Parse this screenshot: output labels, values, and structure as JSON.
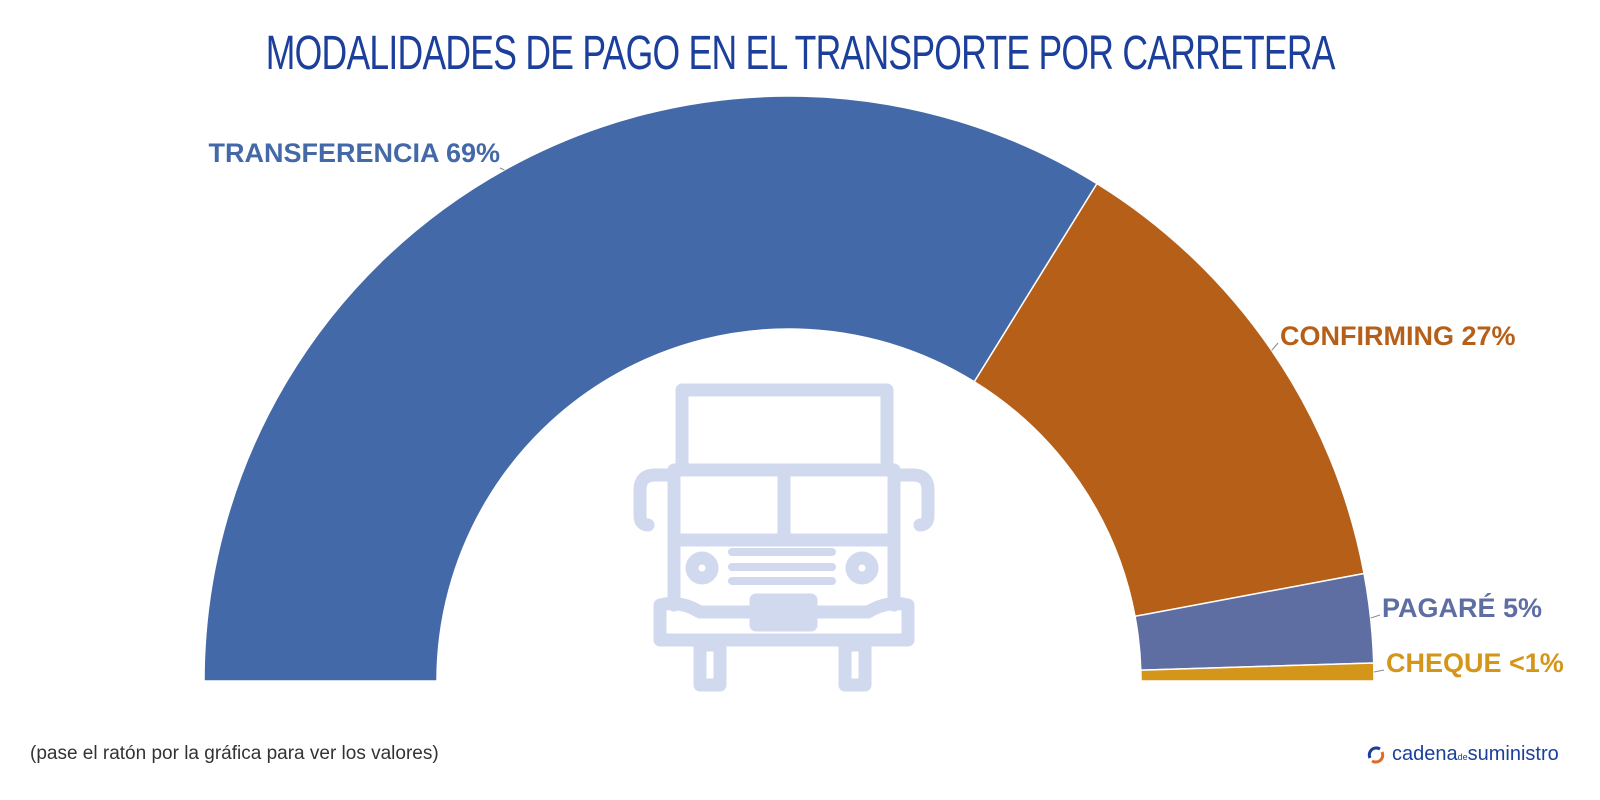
{
  "chart_data": {
    "type": "pie",
    "variant": "semi-donut",
    "title": "MODALIDADES DE PAGO EN EL TRANSPORTE POR CARRETERA",
    "categories": [
      "TRANSFERENCIA",
      "CONFIRMING",
      "PAGARÉ",
      "CHEQUE"
    ],
    "values": [
      69,
      27,
      5,
      1
    ],
    "labels": [
      "TRANSFERENCIA 69%",
      "CONFIRMING 27%",
      "PAGARÉ 5%",
      "CHEQUE <1%"
    ],
    "colors": [
      "#4469a8",
      "#b55f18",
      "#5e6ea3",
      "#d4961a"
    ],
    "center_icon": "truck-icon"
  },
  "note": "(pase el ratón por la gráfica para ver los valores)",
  "logo": {
    "main": "cadena",
    "de": "de",
    "rest": "suministro"
  }
}
